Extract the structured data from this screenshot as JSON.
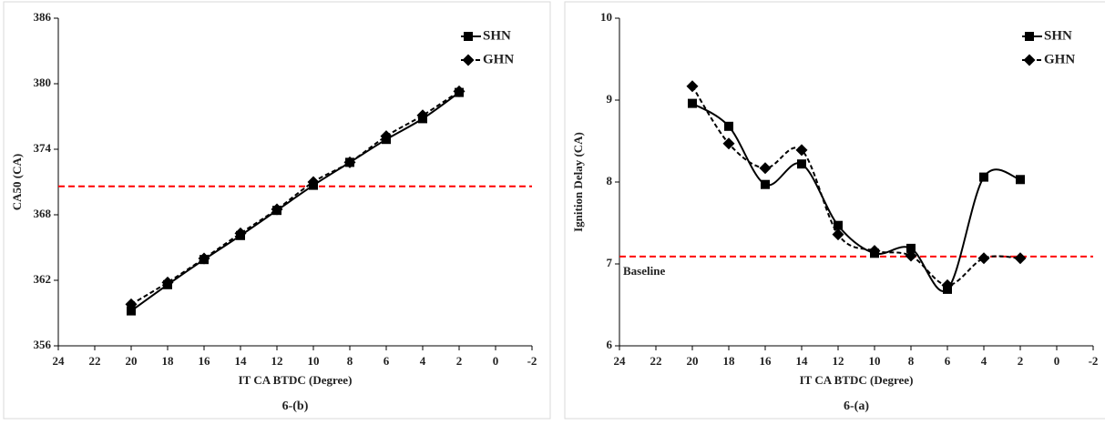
{
  "chart_data": [
    {
      "type": "line",
      "caption": "6-(b)",
      "xlabel": "IT CA BTDC (Degree)",
      "ylabel": "CA50 (CA)",
      "x": [
        20,
        18,
        16,
        14,
        12,
        10,
        8,
        6,
        4,
        2
      ],
      "series": [
        {
          "name": "SHN",
          "color": "#000000",
          "marker": "square",
          "dash": false,
          "values": [
            359.2,
            361.6,
            363.9,
            366.1,
            368.4,
            370.7,
            372.8,
            374.9,
            376.8,
            379.2
          ]
        },
        {
          "name": "GHN",
          "color": "#000000",
          "marker": "diamond",
          "dash": true,
          "values": [
            359.8,
            361.8,
            364.0,
            366.3,
            368.5,
            371.0,
            372.8,
            375.2,
            377.1,
            379.3
          ]
        }
      ],
      "baseline": 370.6,
      "baseline_color": "#ff0000",
      "xlim": [
        24,
        -2
      ],
      "xticks": [
        24,
        22,
        20,
        18,
        16,
        14,
        12,
        10,
        8,
        6,
        4,
        2,
        0,
        -2
      ],
      "ylim": [
        356,
        386
      ],
      "yticks": [
        356,
        362,
        368,
        374,
        380,
        386
      ],
      "legend": "upper right"
    },
    {
      "type": "line",
      "caption": "6-(a)",
      "xlabel": "IT CA BTDC (Degree)",
      "ylabel": "Ignition Delay (CA)",
      "annotation": "Baseline",
      "x": [
        20,
        18,
        16,
        14,
        12,
        10,
        8,
        6,
        4,
        2
      ],
      "series": [
        {
          "name": "SHN",
          "color": "#000000",
          "marker": "square",
          "dash": false,
          "values": [
            8.96,
            8.68,
            7.97,
            8.22,
            7.47,
            7.13,
            7.19,
            6.69,
            8.06,
            8.03
          ]
        },
        {
          "name": "GHN",
          "color": "#000000",
          "marker": "diamond",
          "dash": true,
          "values": [
            9.17,
            8.47,
            8.17,
            8.39,
            7.36,
            7.16,
            7.1,
            6.74,
            7.07,
            7.07
          ]
        }
      ],
      "baseline": 7.09,
      "baseline_color": "#ff0000",
      "xlim": [
        24,
        -2
      ],
      "xticks": [
        24,
        22,
        20,
        18,
        16,
        14,
        12,
        10,
        8,
        6,
        4,
        2,
        0,
        -2
      ],
      "ylim": [
        6,
        10
      ],
      "yticks": [
        6,
        7,
        8,
        9,
        10
      ],
      "legend": "upper right"
    }
  ]
}
